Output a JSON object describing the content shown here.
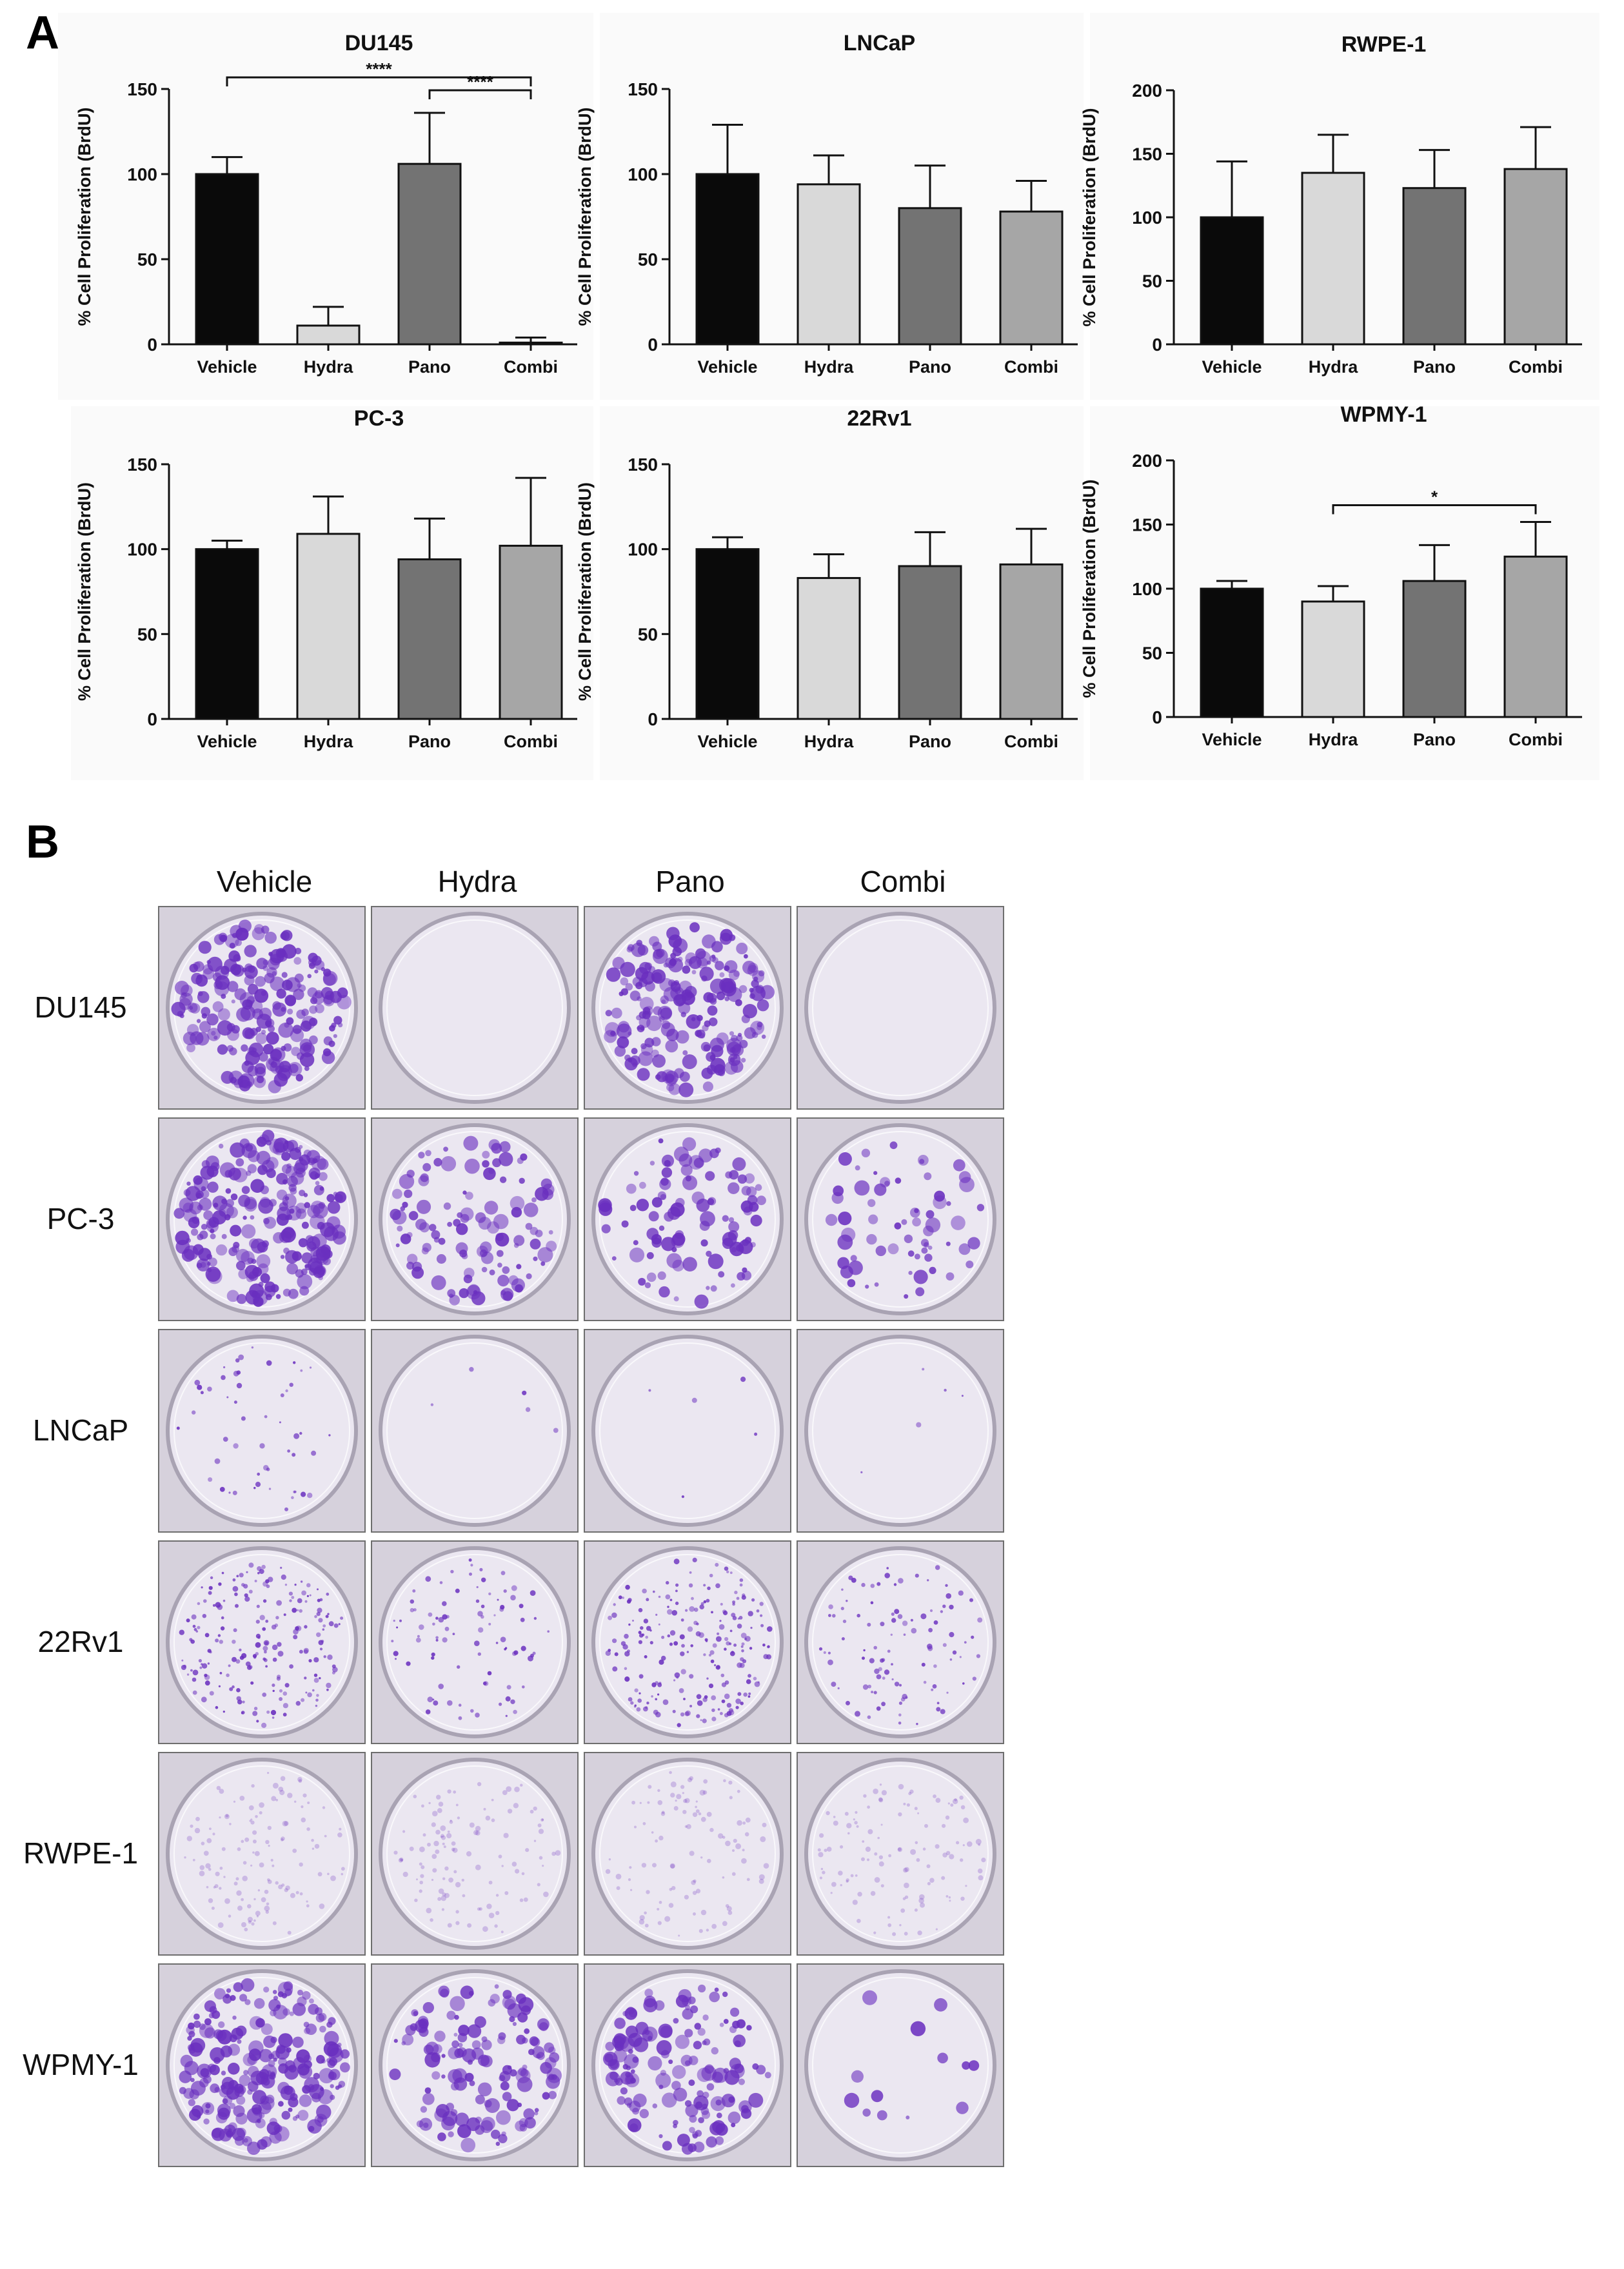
{
  "panels": {
    "a_letter": "A",
    "b_letter": "B"
  },
  "chart_data": [
    {
      "type": "bar",
      "title": "DU145",
      "ylabel": "% Cell Proliferation (BrdU)",
      "ylim": [
        0,
        150
      ],
      "yticks": [
        0,
        50,
        100,
        150
      ],
      "categories": [
        "Vehicle",
        "Hydra",
        "Pano",
        "Combi"
      ],
      "values": [
        100,
        11,
        106,
        1
      ],
      "errors": [
        10,
        11,
        30,
        3
      ],
      "colors": [
        "#0a0a0a",
        "#d9d9d9",
        "#737373",
        "#a6a6a6"
      ],
      "annotations": [
        {
          "from": 0,
          "to": 3,
          "label": "****"
        },
        {
          "from": 2,
          "to": 3,
          "label": "****"
        }
      ]
    },
    {
      "type": "bar",
      "title": "LNCaP",
      "ylabel": "% Cell Proliferation (BrdU)",
      "ylim": [
        0,
        150
      ],
      "yticks": [
        0,
        50,
        100,
        150
      ],
      "categories": [
        "Vehicle",
        "Hydra",
        "Pano",
        "Combi"
      ],
      "values": [
        100,
        94,
        80,
        78
      ],
      "errors": [
        29,
        17,
        25,
        18
      ],
      "colors": [
        "#0a0a0a",
        "#d9d9d9",
        "#737373",
        "#a6a6a6"
      ],
      "annotations": []
    },
    {
      "type": "bar",
      "title": "RWPE-1",
      "ylabel": "% Cell Proliferation (BrdU)",
      "ylim": [
        0,
        200
      ],
      "yticks": [
        0,
        50,
        100,
        150,
        200
      ],
      "categories": [
        "Vehicle",
        "Hydra",
        "Pano",
        "Combi"
      ],
      "values": [
        100,
        135,
        123,
        138
      ],
      "errors": [
        44,
        30,
        30,
        33
      ],
      "colors": [
        "#0a0a0a",
        "#d9d9d9",
        "#737373",
        "#a6a6a6"
      ],
      "annotations": []
    },
    {
      "type": "bar",
      "title": "PC-3",
      "ylabel": "% Cell Proliferation (BrdU)",
      "ylim": [
        0,
        150
      ],
      "yticks": [
        0,
        50,
        100,
        150
      ],
      "categories": [
        "Vehicle",
        "Hydra",
        "Pano",
        "Combi"
      ],
      "values": [
        100,
        109,
        94,
        102
      ],
      "errors": [
        5,
        22,
        24,
        40
      ],
      "colors": [
        "#0a0a0a",
        "#d9d9d9",
        "#737373",
        "#a6a6a6"
      ],
      "annotations": []
    },
    {
      "type": "bar",
      "title": "22Rv1",
      "ylabel": "% Cell Proliferation (BrdU)",
      "ylim": [
        0,
        150
      ],
      "yticks": [
        0,
        50,
        100,
        150
      ],
      "categories": [
        "Vehicle",
        "Hydra",
        "Pano",
        "Combi"
      ],
      "values": [
        100,
        83,
        90,
        91
      ],
      "errors": [
        7,
        14,
        20,
        21
      ],
      "colors": [
        "#0a0a0a",
        "#d9d9d9",
        "#737373",
        "#a6a6a6"
      ],
      "annotations": []
    },
    {
      "type": "bar",
      "title": "WPMY-1",
      "ylabel": "% Cell Proliferation (BrdU)",
      "ylim": [
        0,
        200
      ],
      "yticks": [
        0,
        50,
        100,
        150,
        200
      ],
      "categories": [
        "Vehicle",
        "Hydra",
        "Pano",
        "Combi"
      ],
      "values": [
        100,
        90,
        106,
        125
      ],
      "errors": [
        6,
        12,
        28,
        27
      ],
      "colors": [
        "#0a0a0a",
        "#d9d9d9",
        "#737373",
        "#a6a6a6"
      ],
      "annotations": [
        {
          "from": 1,
          "to": 3,
          "label": "*"
        }
      ]
    }
  ],
  "plates": {
    "columns": [
      "Vehicle",
      "Hydra",
      "Pano",
      "Combi"
    ],
    "rows": [
      "DU145",
      "PC-3",
      "LNCaP",
      "22Rv1",
      "RWPE-1",
      "WPMY-1"
    ],
    "stain_color": "#6a2fbf",
    "colony_density": [
      [
        0.9,
        0.0,
        0.85,
        0.0
      ],
      [
        0.95,
        0.45,
        0.4,
        0.25
      ],
      [
        0.2,
        0.02,
        0.02,
        0.02
      ],
      [
        0.8,
        0.35,
        0.85,
        0.4
      ],
      [
        0.5,
        0.45,
        0.4,
        0.45
      ],
      [
        0.9,
        0.55,
        0.6,
        0.05
      ]
    ]
  }
}
